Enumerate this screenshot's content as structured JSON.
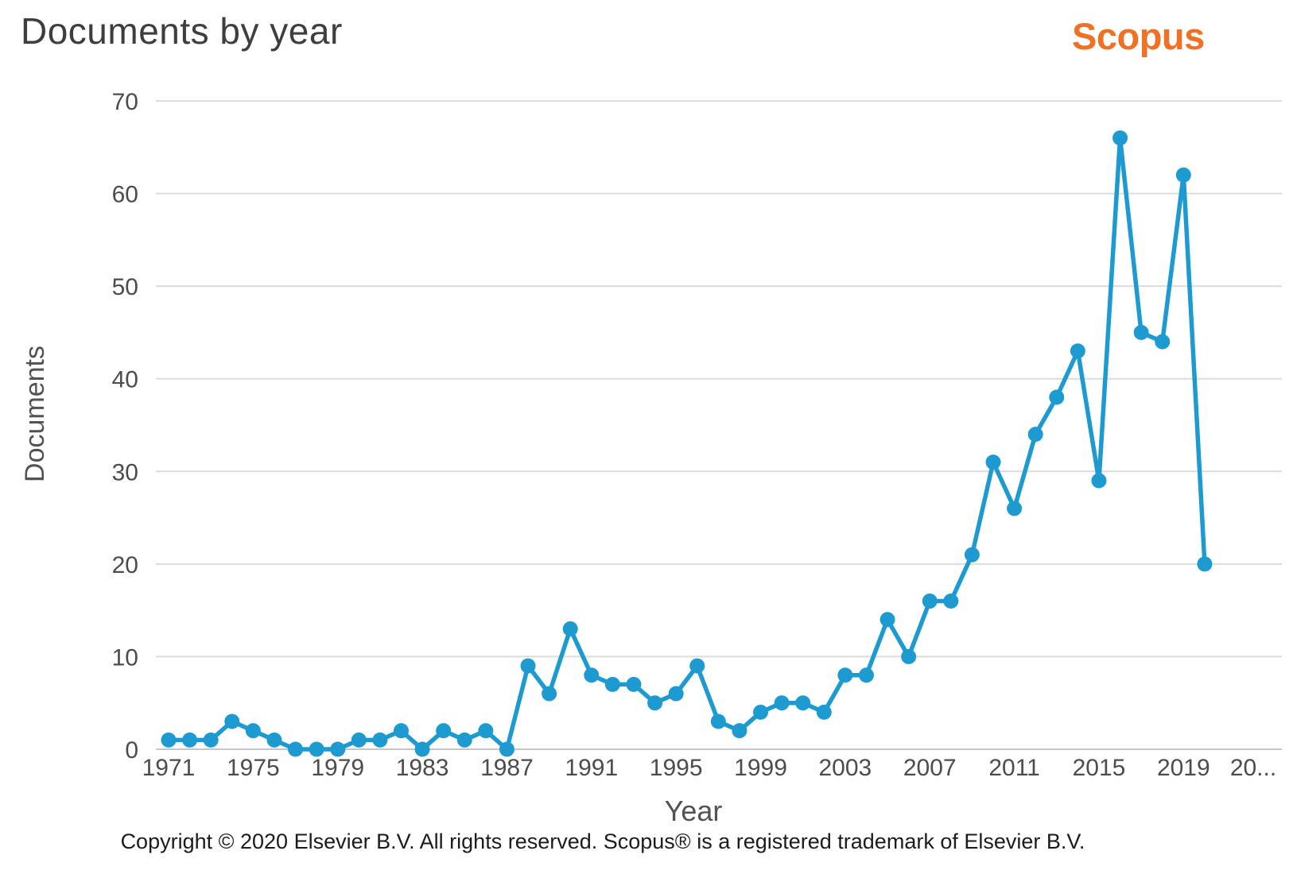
{
  "header": {
    "title": "Documents by year",
    "logo_text": "Scopus"
  },
  "chart_data": {
    "type": "line",
    "title": "Documents by year",
    "xlabel": "Year",
    "ylabel": "Documents",
    "x": [
      1971,
      1972,
      1973,
      1974,
      1975,
      1976,
      1977,
      1978,
      1979,
      1980,
      1981,
      1982,
      1983,
      1984,
      1985,
      1986,
      1987,
      1988,
      1989,
      1990,
      1991,
      1992,
      1993,
      1994,
      1995,
      1996,
      1997,
      1998,
      1999,
      2000,
      2001,
      2002,
      2003,
      2004,
      2005,
      2006,
      2007,
      2008,
      2009,
      2010,
      2011,
      2012,
      2013,
      2014,
      2015,
      2016,
      2017,
      2018,
      2019,
      2020
    ],
    "values": [
      1,
      1,
      1,
      3,
      2,
      1,
      0,
      0,
      0,
      1,
      1,
      2,
      0,
      2,
      1,
      2,
      0,
      9,
      6,
      13,
      8,
      7,
      7,
      5,
      6,
      9,
      3,
      2,
      4,
      5,
      5,
      4,
      8,
      8,
      14,
      10,
      16,
      16,
      21,
      31,
      26,
      34,
      38,
      43,
      29,
      66,
      45,
      44,
      62,
      20
    ],
    "ylim": [
      0,
      70
    ],
    "yticks": [
      0,
      10,
      20,
      30,
      40,
      50,
      60,
      70
    ],
    "x_tick_labels": [
      "1971",
      "1975",
      "1979",
      "1983",
      "1987",
      "1991",
      "1995",
      "1999",
      "2003",
      "2007",
      "2011",
      "2015",
      "2019",
      "20..."
    ],
    "grid": true,
    "legend_position": "none",
    "line_color": "#1d9bd1",
    "grid_color": "#dcdcdc",
    "axis_line_color": "#c6c6c6"
  },
  "footer": {
    "copyright": "Copyright © 2020 Elsevier B.V. All rights reserved. Scopus® is a registered trademark of Elsevier B.V."
  },
  "colors": {
    "accent_orange": "#ee7125",
    "line_blue": "#1d9bd1",
    "title_gray": "#3e3e3e"
  }
}
